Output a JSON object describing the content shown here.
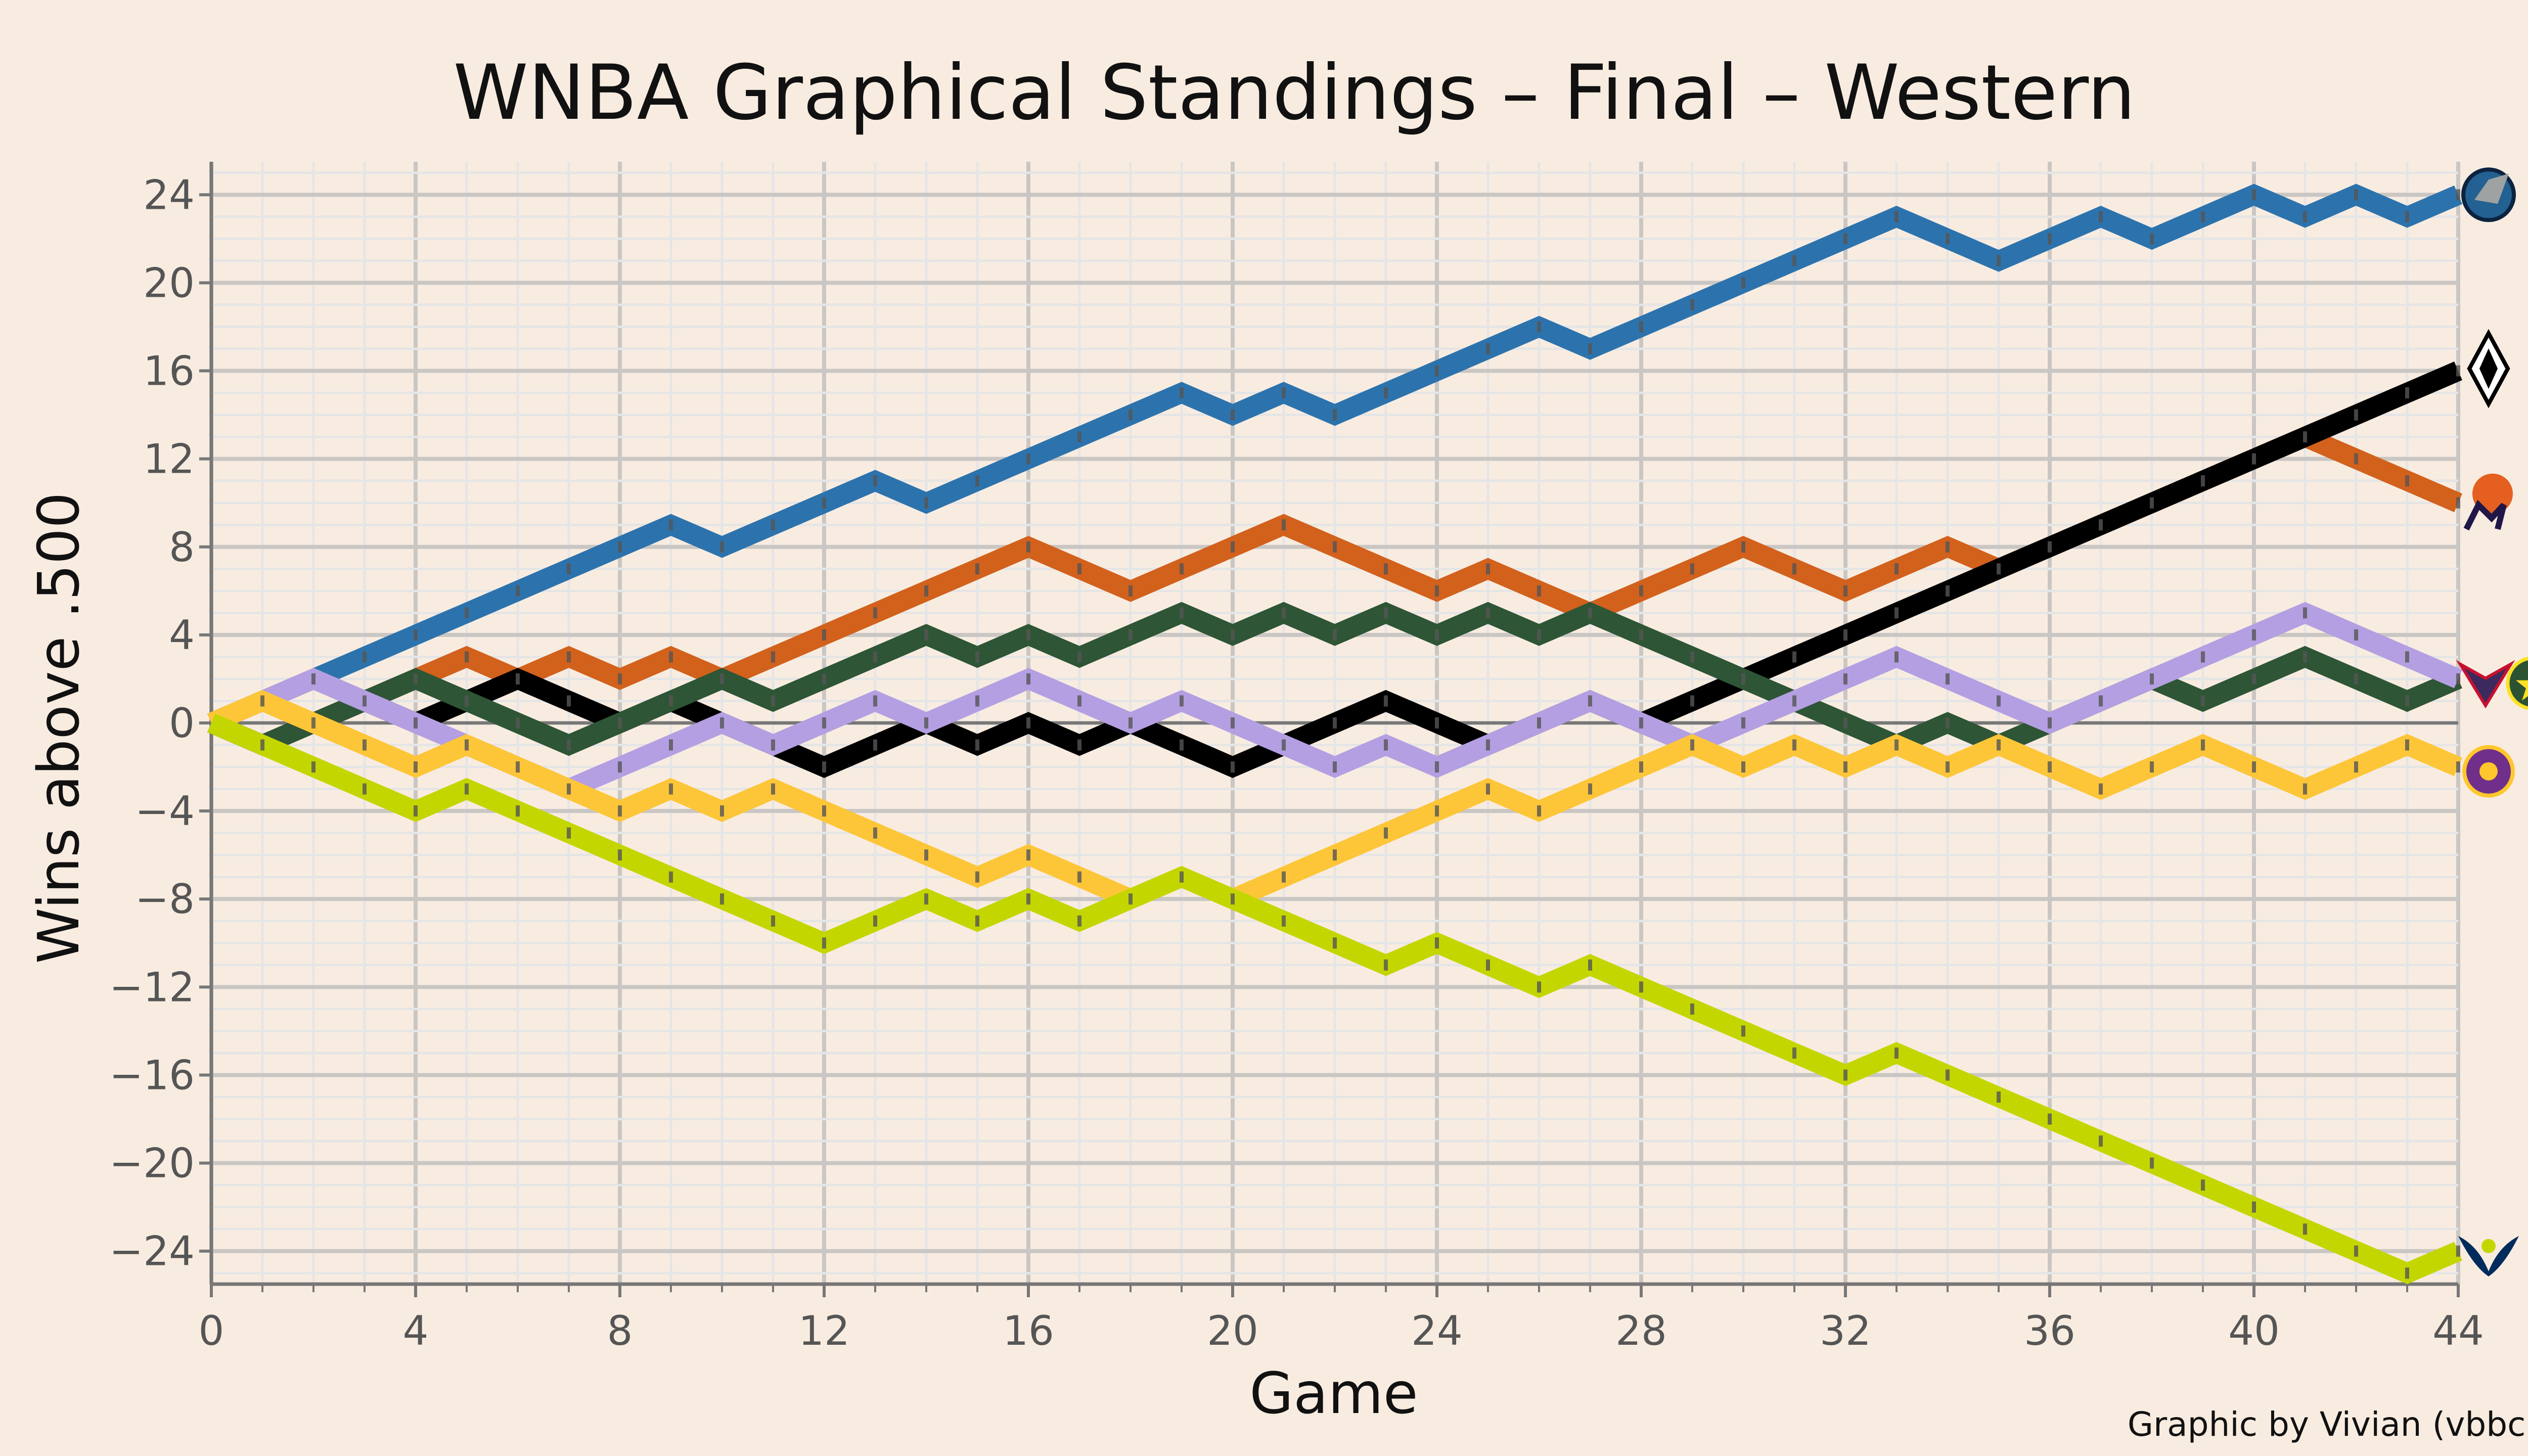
{
  "chart_data": {
    "type": "line",
    "title": "WNBA Graphical Standings – Final – Western",
    "xlabel": "Game",
    "ylabel": "Wins above .500",
    "caption": "Graphic by Vivian (vbbcla)",
    "xlim": [
      0,
      44
    ],
    "ylim": [
      -25.5,
      25.5
    ],
    "xticks": [
      0,
      4,
      8,
      12,
      16,
      20,
      24,
      28,
      32,
      36,
      40,
      44
    ],
    "yticks": [
      24,
      20,
      16,
      12,
      8,
      4,
      0,
      -4,
      -8,
      -12,
      -16,
      -20,
      -24
    ],
    "ytick_labels": [
      "24",
      "20",
      "16",
      "12",
      "8",
      "4",
      "0",
      "−4",
      "−8",
      "−12",
      "−16",
      "−20",
      "−24"
    ],
    "grid": true,
    "x": [
      0,
      1,
      2,
      3,
      4,
      5,
      6,
      7,
      8,
      9,
      10,
      11,
      12,
      13,
      14,
      15,
      16,
      17,
      18,
      19,
      20,
      21,
      22,
      23,
      24,
      25,
      26,
      27,
      28,
      29,
      30,
      31,
      32,
      33,
      34,
      35,
      36,
      37,
      38,
      39,
      40,
      41,
      42,
      43,
      44
    ],
    "series": [
      {
        "color": "#2c73ad",
        "logo": "lynx-logo-icon",
        "values": [
          0,
          1,
          2,
          3,
          4,
          5,
          6,
          7,
          8,
          9,
          8,
          9,
          10,
          11,
          10,
          11,
          12,
          13,
          14,
          15,
          14,
          15,
          14,
          15,
          16,
          17,
          18,
          17,
          18,
          19,
          20,
          21,
          22,
          23,
          22,
          21,
          22,
          23,
          22,
          23,
          24,
          23,
          24,
          23,
          24
        ]
      },
      {
        "color": "#d2611c",
        "logo": "mercury-logo-icon",
        "values": [
          0,
          1,
          2,
          1,
          2,
          3,
          2,
          3,
          2,
          3,
          2,
          3,
          4,
          5,
          6,
          7,
          8,
          7,
          6,
          7,
          8,
          9,
          8,
          7,
          6,
          7,
          6,
          5,
          6,
          7,
          8,
          7,
          6,
          7,
          8,
          7,
          8,
          9,
          10,
          11,
          12,
          13,
          12,
          11,
          10
        ]
      },
      {
        "color": "#000000",
        "logo": "aces-logo-icon",
        "values": [
          0,
          -1,
          0,
          1,
          0,
          1,
          2,
          1,
          0,
          1,
          0,
          -1,
          -2,
          -1,
          0,
          -1,
          0,
          -1,
          0,
          -1,
          -2,
          -1,
          0,
          1,
          0,
          -1,
          0,
          1,
          0,
          1,
          2,
          3,
          4,
          5,
          6,
          7,
          8,
          9,
          10,
          11,
          12,
          13,
          14,
          15,
          16
        ]
      },
      {
        "color": "#2e5535",
        "logo": "storm-logo-icon",
        "values": [
          0,
          -1,
          0,
          1,
          2,
          1,
          0,
          -1,
          0,
          1,
          2,
          1,
          2,
          3,
          4,
          3,
          4,
          3,
          4,
          5,
          4,
          5,
          4,
          5,
          4,
          5,
          4,
          5,
          4,
          3,
          2,
          1,
          0,
          -1,
          0,
          -1,
          0,
          1,
          2,
          1,
          2,
          3,
          2,
          1,
          2
        ]
      },
      {
        "color": "#b49fe2",
        "logo": "mystics-logo-icon",
        "values": [
          0,
          1,
          2,
          1,
          0,
          -1,
          -2,
          -3,
          -2,
          -1,
          0,
          -1,
          0,
          1,
          0,
          1,
          2,
          1,
          0,
          1,
          0,
          -1,
          -2,
          -1,
          -2,
          -1,
          0,
          1,
          0,
          -1,
          0,
          1,
          2,
          3,
          2,
          1,
          0,
          1,
          2,
          3,
          4,
          5,
          4,
          3,
          2
        ]
      },
      {
        "color": "#fdc638",
        "logo": "sparks-logo-icon",
        "values": [
          0,
          1,
          0,
          -1,
          -2,
          -1,
          -2,
          -3,
          -4,
          -3,
          -4,
          -3,
          -4,
          -5,
          -6,
          -7,
          -6,
          -7,
          -8,
          -7,
          -8,
          -7,
          -6,
          -5,
          -4,
          -3,
          -4,
          -3,
          -2,
          -1,
          -2,
          -1,
          -2,
          -1,
          -2,
          -1,
          -2,
          -3,
          -2,
          -1,
          -2,
          -3,
          -2,
          -1,
          -2
        ]
      },
      {
        "color": "#c4d600",
        "logo": "wings-logo-icon",
        "values": [
          0,
          -1,
          -2,
          -3,
          -4,
          -3,
          -4,
          -5,
          -6,
          -7,
          -8,
          -9,
          -10,
          -9,
          -8,
          -9,
          -8,
          -9,
          -8,
          -7,
          -8,
          -9,
          -10,
          -11,
          -10,
          -11,
          -12,
          -11,
          -12,
          -13,
          -14,
          -15,
          -16,
          -15,
          -16,
          -17,
          -18,
          -19,
          -20,
          -21,
          -22,
          -23,
          -24,
          -25,
          -24
        ]
      }
    ]
  }
}
